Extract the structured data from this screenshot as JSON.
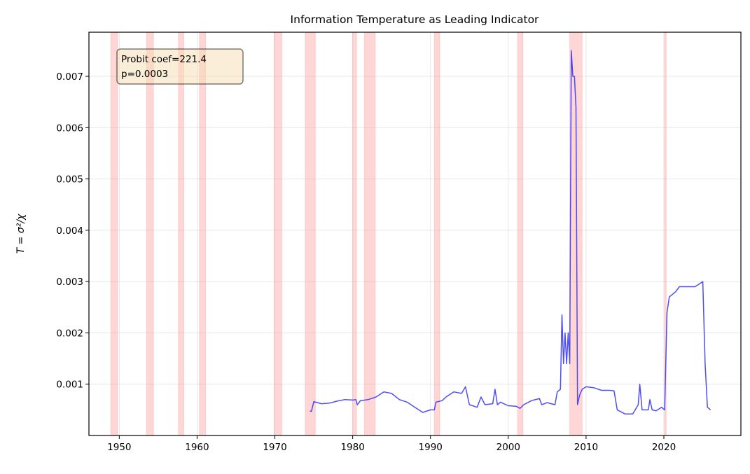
{
  "chart_data": {
    "type": "line",
    "title": "Information Temperature as Leading Indicator",
    "xlabel": "",
    "ylabel": "T = σ²/χ",
    "xlim": [
      1946.1,
      2029.9
    ],
    "ylim": [
      0,
      0.00786
    ],
    "grid": true,
    "x_ticks": [
      1950,
      1960,
      1970,
      1980,
      1990,
      2000,
      2010,
      2020
    ],
    "y_ticks": [
      0.001,
      0.002,
      0.003,
      0.004,
      0.005,
      0.006,
      0.007
    ],
    "y_tick_labels": [
      "0.001",
      "0.002",
      "0.003",
      "0.004",
      "0.005",
      "0.006",
      "0.007"
    ],
    "annotation": {
      "line1": "Probit coef=221.4",
      "line2": "p=0.0003"
    },
    "line_color": "#3b3bf5",
    "band_color": "#ff0000",
    "recession_bands": [
      [
        1948.9,
        1949.8
      ],
      [
        1953.5,
        1954.4
      ],
      [
        1957.6,
        1958.3
      ],
      [
        1960.3,
        1961.1
      ],
      [
        1969.9,
        1970.9
      ],
      [
        1973.9,
        1975.2
      ],
      [
        1980.0,
        1980.5
      ],
      [
        1981.5,
        1982.9
      ],
      [
        1990.5,
        1991.2
      ],
      [
        2001.2,
        2001.9
      ],
      [
        2007.9,
        2009.5
      ],
      [
        2020.1,
        2020.3
      ]
    ],
    "series": [
      {
        "x": [
          1974.5,
          1974.7,
          1975,
          1976,
          1977,
          1978,
          1979,
          1980,
          1980.4,
          1980.6,
          1981,
          1982,
          1983,
          1984,
          1985,
          1986,
          1987,
          1988,
          1989,
          1990,
          1990.5,
          1990.7,
          1991.5,
          1992,
          1993,
          1994,
          1994.5,
          1995,
          1996,
          1996.5,
          1997,
          1998,
          1998.3,
          1998.6,
          1999,
          2000,
          2001,
          2001.5,
          2002,
          2003,
          2004,
          2004.3,
          2005,
          2006,
          2006.3,
          2006.7,
          2006.9,
          2007.1,
          2007.3,
          2007.5,
          2007.7,
          2007.9,
          2008.1,
          2008.3,
          2008.5,
          2008.7,
          2008.9,
          2009.2,
          2009.5,
          2010,
          2011,
          2012,
          2013,
          2013.6,
          2014,
          2015,
          2016,
          2016.7,
          2016.9,
          2017.2,
          2018,
          2018.2,
          2018.5,
          2019,
          2019.7,
          2020.1,
          2020.4,
          2020.7,
          2021.5,
          2022,
          2023,
          2024,
          2025,
          2025.3,
          2025.6,
          2026
        ],
        "y": [
          0.00048,
          0.00047,
          0.00066,
          0.00062,
          0.00063,
          0.00067,
          0.0007,
          0.00069,
          0.0007,
          0.0006,
          0.00068,
          0.0007,
          0.00075,
          0.00085,
          0.00082,
          0.0007,
          0.00065,
          0.00055,
          0.00045,
          0.0005,
          0.0005,
          0.00065,
          0.00068,
          0.00075,
          0.00085,
          0.00082,
          0.00095,
          0.0006,
          0.00055,
          0.00075,
          0.0006,
          0.00062,
          0.0009,
          0.0006,
          0.00065,
          0.00058,
          0.00057,
          0.00053,
          0.0006,
          0.00068,
          0.00072,
          0.0006,
          0.00064,
          0.0006,
          0.00085,
          0.0009,
          0.00235,
          0.0014,
          0.002,
          0.0014,
          0.002,
          0.0014,
          0.0075,
          0.007,
          0.007,
          0.0064,
          0.0006,
          0.0008,
          0.0009,
          0.00095,
          0.00093,
          0.00088,
          0.00088,
          0.00087,
          0.0005,
          0.00042,
          0.00042,
          0.0006,
          0.001,
          0.0005,
          0.0005,
          0.0007,
          0.0005,
          0.00048,
          0.00055,
          0.0005,
          0.0024,
          0.0027,
          0.0028,
          0.0029,
          0.0029,
          0.0029,
          0.003,
          0.0014,
          0.00055,
          0.0005
        ]
      }
    ]
  }
}
